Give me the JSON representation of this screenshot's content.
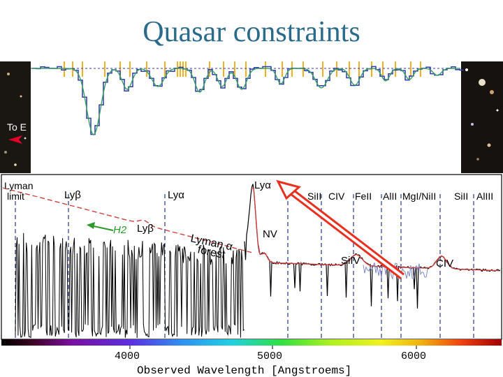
{
  "slide": {
    "title": "Quasar constraints"
  },
  "inset": {
    "side_label": "To E",
    "arrow_color": "#e8002a"
  },
  "plot": {
    "line_labels": {
      "lyman_limit": "Lyman\nlimit",
      "ly_beta": "Lyβ",
      "ly_alpha_top": "Lyα",
      "ly_alpha_peak": "Lyα",
      "si2_a": "SiII",
      "c4_a": "CIV",
      "fe2": "FeII",
      "al2": "AlII",
      "mg_ni": "MgI/NiII",
      "si2_b": "SiII",
      "al3": "AlIII"
    },
    "annotations": {
      "h2": "H2",
      "ly_beta_emission": "Lyβ",
      "lyman_alpha_forest": "Lyman α forest",
      "nv": "NV",
      "si4": "SiIV",
      "civ_emission": "CIV"
    },
    "x_ticks": [
      "4000",
      "5000",
      "6000"
    ],
    "x_axis_label": "Observed Wavelength [Angstroems]",
    "colors": {
      "continuum": "#d04040",
      "spectrum": "#000000",
      "h2_arrow": "#2a9a2a",
      "highlight_arrow": "#e83020",
      "guide_lines": "#2a3a8a"
    }
  }
}
